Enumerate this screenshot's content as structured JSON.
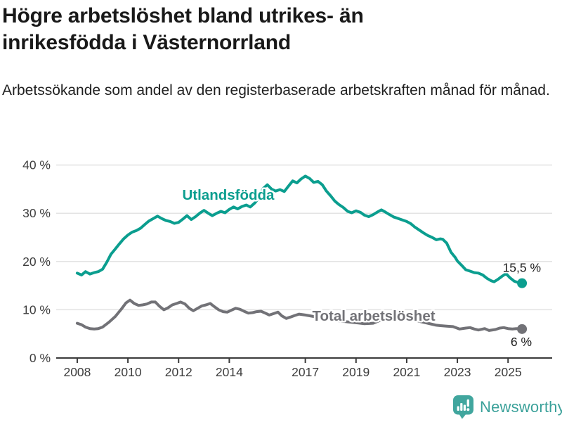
{
  "header": {
    "title": "Högre arbetslöshet bland utrikes- än inrikesfödda i Västernorrland",
    "subtitle": "Arbetssökande som andel av den registerbaserade arbetskraften månad för månad."
  },
  "footer": {
    "brand_name": "Newsworthy",
    "logo_icon": "speech-bubble-bar-chart-icon"
  },
  "colors": {
    "background": "#ffffff",
    "title_text": "#191919",
    "subtitle_text": "#1f1f1f",
    "axis_text": "#3d3d3d",
    "axis_line": "#3b3b3b",
    "gridline": "#e3e3e3",
    "series_foreign_born": "#0b9e8f",
    "series_total": "#727277",
    "value_label_text": "#1a1a1a",
    "brand_teal": "#3ba19a"
  },
  "chart_data": {
    "type": "line",
    "title": "Högre arbetslöshet bland utrikes- än inrikesfödda i Västernorrland",
    "subtitle": "Arbetssökande som andel av den registerbaserade arbetskraften månad för månad.",
    "x_unit": "year (monthly observations)",
    "y_unit": "percent of registered labour force",
    "xlim": [
      2007.17,
      2026.74
    ],
    "ylim": [
      0,
      40
    ],
    "grid": "horizontal",
    "legend_position": "inline-labels",
    "x_ticks": [
      {
        "v": 2008,
        "label": "2008"
      },
      {
        "v": 2010,
        "label": "2010"
      },
      {
        "v": 2012,
        "label": "2012"
      },
      {
        "v": 2014,
        "label": "2014"
      },
      {
        "v": 2017,
        "label": "2017"
      },
      {
        "v": 2019,
        "label": "2019"
      },
      {
        "v": 2021,
        "label": "2021"
      },
      {
        "v": 2023,
        "label": "2023"
      },
      {
        "v": 2025,
        "label": "2025"
      }
    ],
    "y_ticks": [
      {
        "v": 0,
        "label": "0 %"
      },
      {
        "v": 10,
        "label": "10 %"
      },
      {
        "v": 20,
        "label": "20 %"
      },
      {
        "v": 30,
        "label": "30 %"
      },
      {
        "v": 40,
        "label": "40 %"
      }
    ],
    "series": [
      {
        "name": "Utlandsfödda",
        "color": "#0b9e8f",
        "label_x": 2013.96,
        "label_y": 33.8,
        "end_label": "15,5 %",
        "end_value": 15.5,
        "points": [
          [
            2008.0,
            17.6
          ],
          [
            2008.17,
            17.2
          ],
          [
            2008.33,
            17.9
          ],
          [
            2008.5,
            17.4
          ],
          [
            2008.67,
            17.7
          ],
          [
            2008.83,
            17.9
          ],
          [
            2009.0,
            18.4
          ],
          [
            2009.17,
            19.9
          ],
          [
            2009.33,
            21.5
          ],
          [
            2009.5,
            22.6
          ],
          [
            2009.67,
            23.7
          ],
          [
            2009.83,
            24.7
          ],
          [
            2010.0,
            25.5
          ],
          [
            2010.17,
            26.1
          ],
          [
            2010.33,
            26.4
          ],
          [
            2010.5,
            26.9
          ],
          [
            2010.67,
            27.7
          ],
          [
            2010.83,
            28.4
          ],
          [
            2011.0,
            28.9
          ],
          [
            2011.17,
            29.4
          ],
          [
            2011.33,
            28.9
          ],
          [
            2011.5,
            28.5
          ],
          [
            2011.67,
            28.3
          ],
          [
            2011.83,
            27.9
          ],
          [
            2012.0,
            28.1
          ],
          [
            2012.17,
            28.8
          ],
          [
            2012.33,
            29.5
          ],
          [
            2012.5,
            28.7
          ],
          [
            2012.67,
            29.3
          ],
          [
            2012.83,
            30.0
          ],
          [
            2013.0,
            30.6
          ],
          [
            2013.17,
            30.0
          ],
          [
            2013.33,
            29.5
          ],
          [
            2013.5,
            30.0
          ],
          [
            2013.67,
            30.4
          ],
          [
            2013.83,
            30.1
          ],
          [
            2014.0,
            30.8
          ],
          [
            2014.17,
            31.3
          ],
          [
            2014.33,
            30.9
          ],
          [
            2014.5,
            31.4
          ],
          [
            2014.67,
            31.7
          ],
          [
            2014.83,
            31.3
          ],
          [
            2015.0,
            32.1
          ],
          [
            2015.17,
            33.2
          ],
          [
            2015.33,
            35.1
          ],
          [
            2015.5,
            35.9
          ],
          [
            2015.67,
            35.0
          ],
          [
            2015.83,
            34.6
          ],
          [
            2016.0,
            34.9
          ],
          [
            2016.17,
            34.5
          ],
          [
            2016.33,
            35.6
          ],
          [
            2016.5,
            36.7
          ],
          [
            2016.67,
            36.3
          ],
          [
            2016.83,
            37.1
          ],
          [
            2017.0,
            37.7
          ],
          [
            2017.17,
            37.2
          ],
          [
            2017.33,
            36.4
          ],
          [
            2017.5,
            36.6
          ],
          [
            2017.67,
            35.9
          ],
          [
            2017.83,
            34.6
          ],
          [
            2018.0,
            33.6
          ],
          [
            2018.17,
            32.5
          ],
          [
            2018.33,
            31.8
          ],
          [
            2018.5,
            31.2
          ],
          [
            2018.67,
            30.4
          ],
          [
            2018.83,
            30.1
          ],
          [
            2019.0,
            30.5
          ],
          [
            2019.17,
            30.2
          ],
          [
            2019.33,
            29.6
          ],
          [
            2019.5,
            29.3
          ],
          [
            2019.67,
            29.7
          ],
          [
            2019.83,
            30.2
          ],
          [
            2020.0,
            30.7
          ],
          [
            2020.17,
            30.2
          ],
          [
            2020.33,
            29.7
          ],
          [
            2020.5,
            29.2
          ],
          [
            2020.67,
            28.9
          ],
          [
            2020.83,
            28.6
          ],
          [
            2021.0,
            28.3
          ],
          [
            2021.17,
            27.8
          ],
          [
            2021.33,
            27.1
          ],
          [
            2021.5,
            26.5
          ],
          [
            2021.67,
            25.9
          ],
          [
            2021.83,
            25.4
          ],
          [
            2022.0,
            25.0
          ],
          [
            2022.17,
            24.5
          ],
          [
            2022.33,
            24.7
          ],
          [
            2022.42,
            24.6
          ],
          [
            2022.58,
            23.8
          ],
          [
            2022.75,
            21.9
          ],
          [
            2022.92,
            20.8
          ],
          [
            2023.0,
            20.1
          ],
          [
            2023.17,
            19.2
          ],
          [
            2023.33,
            18.3
          ],
          [
            2023.5,
            18.0
          ],
          [
            2023.67,
            17.7
          ],
          [
            2023.83,
            17.6
          ],
          [
            2024.0,
            17.2
          ],
          [
            2024.17,
            16.5
          ],
          [
            2024.33,
            16.0
          ],
          [
            2024.45,
            15.8
          ],
          [
            2024.6,
            16.3
          ],
          [
            2024.75,
            16.9
          ],
          [
            2024.92,
            17.5
          ],
          [
            2025.08,
            16.6
          ],
          [
            2025.25,
            15.9
          ],
          [
            2025.42,
            15.6
          ],
          [
            2025.55,
            15.5
          ]
        ]
      },
      {
        "name": "Total arbetslöshet",
        "color": "#727277",
        "label_x": 2019.7,
        "label_y": 8.75,
        "end_label": "6 %",
        "end_value": 6,
        "points": [
          [
            2008.0,
            7.2
          ],
          [
            2008.17,
            6.9
          ],
          [
            2008.33,
            6.4
          ],
          [
            2008.5,
            6.1
          ],
          [
            2008.67,
            6.0
          ],
          [
            2008.83,
            6.1
          ],
          [
            2009.0,
            6.4
          ],
          [
            2009.25,
            7.4
          ],
          [
            2009.5,
            8.6
          ],
          [
            2009.75,
            10.2
          ],
          [
            2009.92,
            11.4
          ],
          [
            2010.08,
            12.0
          ],
          [
            2010.25,
            11.3
          ],
          [
            2010.42,
            10.9
          ],
          [
            2010.58,
            11.0
          ],
          [
            2010.75,
            11.2
          ],
          [
            2010.92,
            11.6
          ],
          [
            2011.08,
            11.6
          ],
          [
            2011.25,
            10.7
          ],
          [
            2011.42,
            10.0
          ],
          [
            2011.58,
            10.4
          ],
          [
            2011.75,
            11.0
          ],
          [
            2011.92,
            11.3
          ],
          [
            2012.08,
            11.6
          ],
          [
            2012.25,
            11.2
          ],
          [
            2012.42,
            10.3
          ],
          [
            2012.58,
            9.8
          ],
          [
            2012.75,
            10.3
          ],
          [
            2012.92,
            10.8
          ],
          [
            2013.08,
            11.0
          ],
          [
            2013.25,
            11.3
          ],
          [
            2013.42,
            10.6
          ],
          [
            2013.58,
            10.0
          ],
          [
            2013.75,
            9.6
          ],
          [
            2013.92,
            9.5
          ],
          [
            2014.08,
            9.9
          ],
          [
            2014.25,
            10.3
          ],
          [
            2014.42,
            10.1
          ],
          [
            2014.58,
            9.7
          ],
          [
            2014.75,
            9.3
          ],
          [
            2014.92,
            9.4
          ],
          [
            2015.08,
            9.6
          ],
          [
            2015.25,
            9.7
          ],
          [
            2015.42,
            9.3
          ],
          [
            2015.58,
            8.9
          ],
          [
            2015.75,
            9.2
          ],
          [
            2015.92,
            9.5
          ],
          [
            2016.08,
            8.7
          ],
          [
            2016.25,
            8.2
          ],
          [
            2016.42,
            8.5
          ],
          [
            2016.58,
            8.8
          ],
          [
            2016.75,
            9.1
          ],
          [
            2017.0,
            8.9
          ],
          [
            2017.33,
            8.6
          ],
          [
            2017.67,
            8.3
          ],
          [
            2018.0,
            8.0
          ],
          [
            2018.33,
            7.7
          ],
          [
            2018.67,
            7.5
          ],
          [
            2019.0,
            7.3
          ],
          [
            2019.33,
            7.1
          ],
          [
            2019.67,
            7.2
          ],
          [
            2020.0,
            7.9
          ],
          [
            2020.25,
            8.7
          ],
          [
            2020.5,
            8.9
          ],
          [
            2020.75,
            8.7
          ],
          [
            2021.0,
            8.3
          ],
          [
            2021.25,
            8.0
          ],
          [
            2021.5,
            7.6
          ],
          [
            2021.75,
            7.3
          ],
          [
            2022.0,
            7.0
          ],
          [
            2022.17,
            6.8
          ],
          [
            2022.33,
            6.7
          ],
          [
            2022.58,
            6.6
          ],
          [
            2022.83,
            6.5
          ],
          [
            2023.08,
            6.0
          ],
          [
            2023.33,
            6.2
          ],
          [
            2023.5,
            6.3
          ],
          [
            2023.67,
            6.0
          ],
          [
            2023.83,
            5.8
          ],
          [
            2024.08,
            6.1
          ],
          [
            2024.25,
            5.7
          ],
          [
            2024.5,
            5.9
          ],
          [
            2024.67,
            6.2
          ],
          [
            2024.83,
            6.3
          ],
          [
            2025.0,
            6.1
          ],
          [
            2025.17,
            6.0
          ],
          [
            2025.33,
            6.1
          ],
          [
            2025.55,
            6.0
          ]
        ]
      }
    ]
  }
}
